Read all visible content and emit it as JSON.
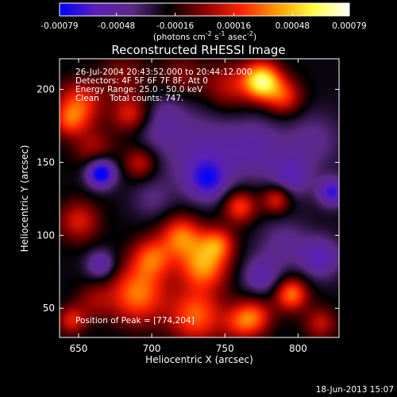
{
  "chart_data": {
    "type": "heatmap",
    "title": "Reconstructed RHESSI Image",
    "xlabel": "Heliocentric X (arcsec)",
    "ylabel": "Heliocentric Y (arcsec)",
    "xlim": [
      637,
      828
    ],
    "ylim": [
      30,
      221
    ],
    "x_ticks": [
      650,
      700,
      750,
      800
    ],
    "y_ticks": [
      50,
      100,
      150,
      200
    ],
    "colorbar": {
      "min": -0.00079,
      "max": 0.00079,
      "ticks": [
        -0.00079,
        -0.00048,
        -0.00016,
        0.00016,
        0.00048,
        0.00079
      ],
      "tick_labels": [
        "-0.00079",
        "-0.00048",
        "-0.00016",
        "0.00016",
        "0.00048",
        "0.00079"
      ],
      "label_main": "(photons cm",
      "label_exp1": "-2",
      "label_mid1": " s",
      "label_exp2": "-1",
      "label_mid2": " asec",
      "label_exp3": "-2",
      "label_end": ")",
      "colormap": [
        "#0000ff",
        "#5a1fb8",
        "#5b2a86",
        "#000000",
        "#8b0000",
        "#ff2200",
        "#ff9900",
        "#ffff40",
        "#ffffff"
      ]
    },
    "annotations": [
      "26-Jul-2004 20:43:52.000 to 20:44:12.000",
      "Detectors: 4F 5F 6F 7F 8F, Att 0",
      "Energy Range: 25.0 - 50.0 keV",
      "Clean    Total counts: 747."
    ],
    "peak_label": "Position of Peak = [774,204]",
    "peak": [
      774,
      204
    ],
    "blobs": [
      {
        "x": 775,
        "y": 206,
        "v": 0.00082,
        "s": 9
      },
      {
        "x": 752,
        "y": 202,
        "v": 0.0003,
        "s": 12
      },
      {
        "x": 790,
        "y": 195,
        "v": 0.0004,
        "s": 9
      },
      {
        "x": 720,
        "y": 210,
        "v": 0.0002,
        "s": 11
      },
      {
        "x": 680,
        "y": 210,
        "v": 0.0002,
        "s": 12
      },
      {
        "x": 650,
        "y": 190,
        "v": 0.00045,
        "s": 11
      },
      {
        "x": 685,
        "y": 183,
        "v": 0.00035,
        "s": 9
      },
      {
        "x": 643,
        "y": 178,
        "v": 0.0003,
        "s": 8
      },
      {
        "x": 660,
        "y": 160,
        "v": 0.00025,
        "s": 10
      },
      {
        "x": 692,
        "y": 150,
        "v": 0.00033,
        "s": 8
      },
      {
        "x": 700,
        "y": 170,
        "v": -0.00012,
        "s": 10
      },
      {
        "x": 730,
        "y": 160,
        "v": -0.00025,
        "s": 20
      },
      {
        "x": 770,
        "y": 160,
        "v": -0.00025,
        "s": 16
      },
      {
        "x": 810,
        "y": 165,
        "v": -0.0002,
        "s": 14
      },
      {
        "x": 665,
        "y": 143,
        "v": -0.00065,
        "s": 7
      },
      {
        "x": 738,
        "y": 138,
        "v": -0.0004,
        "s": 10
      },
      {
        "x": 795,
        "y": 140,
        "v": -0.0003,
        "s": 10
      },
      {
        "x": 823,
        "y": 130,
        "v": -0.00045,
        "s": 7
      },
      {
        "x": 760,
        "y": 120,
        "v": 0.00045,
        "s": 8
      },
      {
        "x": 785,
        "y": 125,
        "v": 0.0004,
        "s": 7
      },
      {
        "x": 650,
        "y": 110,
        "v": 0.00035,
        "s": 10
      },
      {
        "x": 700,
        "y": 125,
        "v": -0.00015,
        "s": 10
      },
      {
        "x": 720,
        "y": 100,
        "v": 0.0005,
        "s": 10
      },
      {
        "x": 735,
        "y": 80,
        "v": 0.0006,
        "s": 12
      },
      {
        "x": 745,
        "y": 95,
        "v": 0.0004,
        "s": 8
      },
      {
        "x": 700,
        "y": 85,
        "v": 0.00045,
        "s": 10
      },
      {
        "x": 690,
        "y": 60,
        "v": 0.00055,
        "s": 14
      },
      {
        "x": 730,
        "y": 45,
        "v": 0.0005,
        "s": 13
      },
      {
        "x": 665,
        "y": 80,
        "v": -0.00035,
        "s": 7
      },
      {
        "x": 660,
        "y": 55,
        "v": 0.0002,
        "s": 9
      },
      {
        "x": 645,
        "y": 42,
        "v": 0.00035,
        "s": 7
      },
      {
        "x": 775,
        "y": 72,
        "v": -0.0003,
        "s": 10
      },
      {
        "x": 790,
        "y": 95,
        "v": -0.0002,
        "s": 12
      },
      {
        "x": 815,
        "y": 85,
        "v": -0.00035,
        "s": 10
      },
      {
        "x": 795,
        "y": 60,
        "v": 0.00055,
        "s": 8
      },
      {
        "x": 770,
        "y": 45,
        "v": 0.0004,
        "s": 9
      },
      {
        "x": 815,
        "y": 40,
        "v": 0.0003,
        "s": 8
      },
      {
        "x": 760,
        "y": 40,
        "v": 0.0003,
        "s": 9
      },
      {
        "x": 710,
        "y": 185,
        "v": -0.00015,
        "s": 9
      }
    ]
  },
  "footer": {
    "date": "18-Jun-2013 15:07"
  }
}
